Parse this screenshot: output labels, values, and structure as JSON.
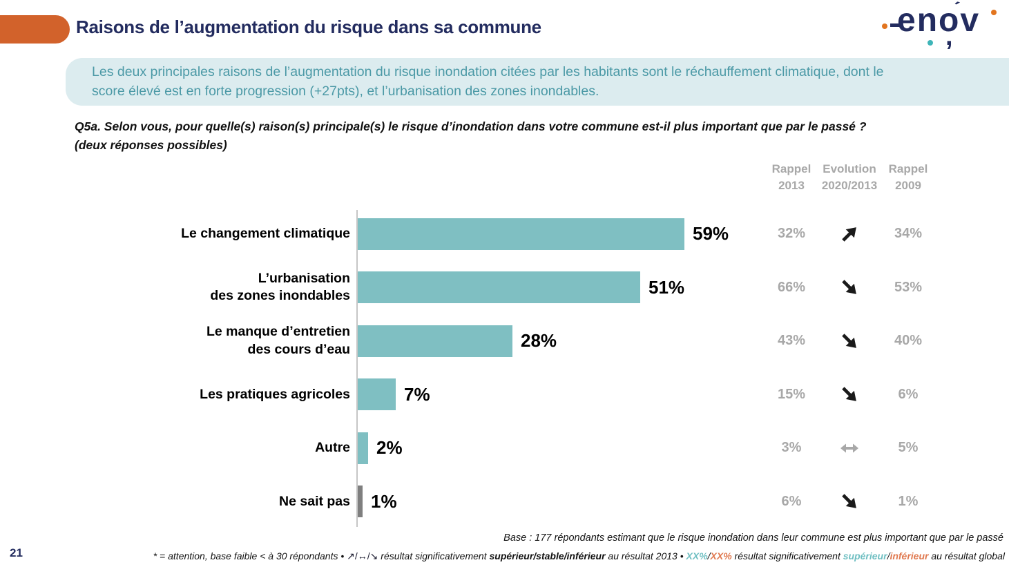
{
  "page": {
    "number": "21"
  },
  "header": {
    "title": "Raisons de l’augmentation du risque dans sa commune",
    "logo_text": "enov"
  },
  "summary_box": {
    "line1": "Les deux principales raisons de l’augmentation du risque inondation citées par les habitants sont le réchauffement climatique, dont le",
    "line2": "score élevé est en forte progression (+27pts), et l’urbanisation des zones inondables."
  },
  "question": {
    "line1": "Q5a. Selon vous, pour quelle(s) raison(s) principale(s) le risque d’inondation dans votre commune est-il plus important que par le passé ?",
    "line2": "(deux réponses possibles)"
  },
  "columns": {
    "rappel2013_line1": "Rappel",
    "rappel2013_line2": "2013",
    "evolution_line1": "Evolution",
    "evolution_line2": "2020/2013",
    "rappel2009_line1": "Rappel",
    "rappel2009_line2": "2009"
  },
  "chart_data": {
    "type": "bar",
    "orientation": "horizontal",
    "title": "",
    "xlabel": "",
    "ylabel": "",
    "xlim": [
      0,
      100
    ],
    "grid": false,
    "legend": false,
    "bar_color": "#7FBFC2",
    "categories": [
      "Le changement climatique",
      "L’urbanisation des zones inondables",
      "Le manque d’entretien des cours d’eau",
      "Les pratiques agricoles",
      "Autre",
      "Ne sait pas"
    ],
    "values": [
      59,
      51,
      28,
      7,
      2,
      1
    ],
    "rows": [
      {
        "label_lines": [
          "Le changement climatique"
        ],
        "value": 59,
        "value_label": "59%",
        "bar_color": "#7FBFC2",
        "rappel_2013": "32%",
        "evolution": "up",
        "rappel_2009": "34%"
      },
      {
        "label_lines": [
          "L’urbanisation",
          "des zones inondables"
        ],
        "value": 51,
        "value_label": "51%",
        "bar_color": "#7FBFC2",
        "rappel_2013": "66%",
        "evolution": "down",
        "rappel_2009": "53%"
      },
      {
        "label_lines": [
          "Le manque d’entretien",
          "des cours d’eau"
        ],
        "value": 28,
        "value_label": "28%",
        "bar_color": "#7FBFC2",
        "rappel_2013": "43%",
        "evolution": "down",
        "rappel_2009": "40%"
      },
      {
        "label_lines": [
          "Les pratiques agricoles"
        ],
        "value": 7,
        "value_label": "7%",
        "bar_color": "#7FBFC2",
        "rappel_2013": "15%",
        "evolution": "down",
        "rappel_2009": "6%"
      },
      {
        "label_lines": [
          "Autre"
        ],
        "value": 2,
        "value_label": "2%",
        "bar_color": "#7FBFC2",
        "rappel_2013": "3%",
        "evolution": "stable",
        "rappel_2009": "5%"
      },
      {
        "label_lines": [
          "Ne sait pas"
        ],
        "value": 1,
        "value_label": "1%",
        "bar_color": "#7F7F7F",
        "rappel_2013": "6%",
        "evolution": "down",
        "rappel_2009": "1%"
      }
    ]
  },
  "base_note": "Base : 177 répondants estimant que le risque inondation dans leur commune est plus important que par le passé",
  "footnote": {
    "part1": "* = attention, base faible < à 30 répondants • ",
    "arrows": "↗/↔/↘",
    "part2": " résultat significativement ",
    "bold1": "supérieur/stable/inférieur",
    "part3": " au résultat 2013 • ",
    "xx_sup": "XX%",
    "slash1": "/",
    "xx_inf": "XX%",
    "part4": " résultat significativement ",
    "sup_word": "supérieur",
    "slash2": "/",
    "inf_word": "inférieur",
    "part5": " au résultat global"
  },
  "colors": {
    "accent_orange": "#D2622B",
    "title_navy": "#232C5F",
    "summary_bg": "#DCECEF",
    "summary_text": "#4B99A6",
    "bar_teal": "#7FBFC2",
    "bar_gray": "#7F7F7F",
    "muted_gray": "#A8A8A8",
    "footnote_teal": "#6FBFC2",
    "footnote_orange": "#E0794F"
  }
}
